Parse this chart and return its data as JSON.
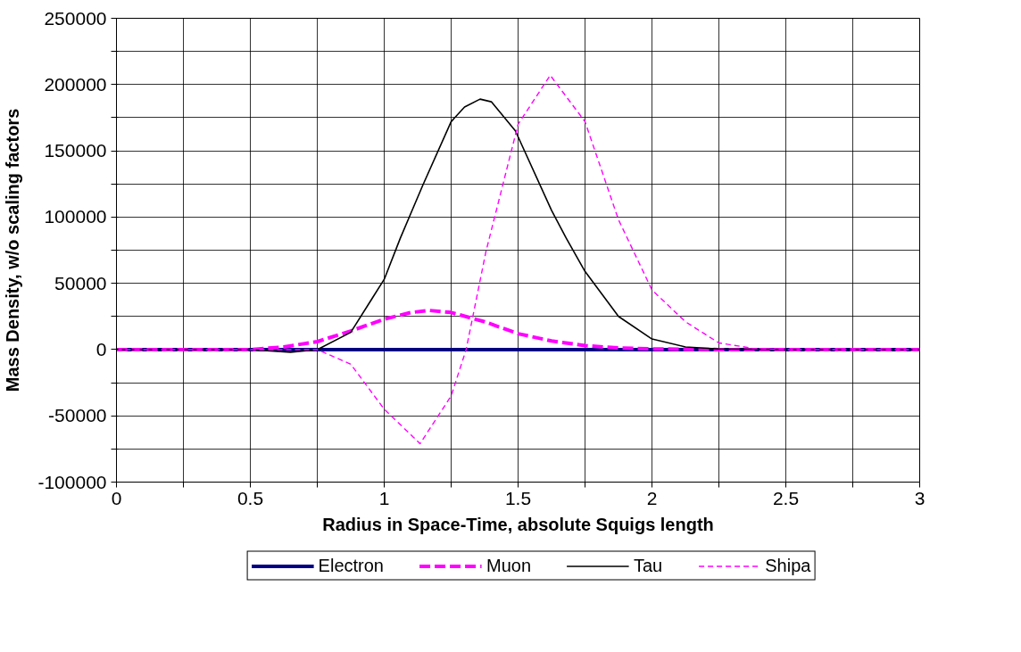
{
  "chart_data": {
    "type": "line",
    "xlabel": "Radius in Space-Time, absolute Squigs length",
    "ylabel": "Mass Density, w/o scaling factors",
    "xlim": [
      0,
      3
    ],
    "ylim": [
      -100000,
      250000
    ],
    "xticks": [
      0,
      {
        "value": 0.25,
        "label": null
      },
      0.5,
      {
        "value": 0.75,
        "label": null
      },
      1,
      {
        "value": 1.25,
        "label": null
      },
      1.5,
      {
        "value": 1.75,
        "label": null
      },
      2,
      {
        "value": 2.25,
        "label": null
      },
      2.5,
      {
        "value": 2.75,
        "label": null
      },
      3
    ],
    "yticks": [
      -100000,
      {
        "value": -75000,
        "label": null
      },
      -50000,
      {
        "value": -25000,
        "label": null
      },
      0,
      {
        "value": 25000,
        "label": null
      },
      50000,
      {
        "value": 75000,
        "label": null
      },
      100000,
      {
        "value": 125000,
        "label": null
      },
      150000,
      {
        "value": 175000,
        "label": null
      },
      200000,
      {
        "value": 225000,
        "label": null
      },
      250000
    ],
    "grid": true,
    "legend": "bottom",
    "marker": "none",
    "series": [
      {
        "name": "Electron",
        "color": "#000080",
        "line_style": "solid",
        "x": [
          0,
          0.5,
          1,
          1.5,
          2,
          2.5,
          3
        ],
        "values": [
          0,
          0,
          0,
          0,
          0,
          0,
          0
        ]
      },
      {
        "name": "Muon",
        "color": "#ff00ff",
        "line_style": "dashed",
        "x": [
          0,
          0.25,
          0.5,
          0.625,
          0.75,
          0.875,
          1,
          1.1,
          1.17,
          1.25,
          1.375,
          1.5,
          1.625,
          1.75,
          1.875,
          2,
          2.25,
          2.5,
          3
        ],
        "values": [
          0,
          0,
          0,
          2000,
          6000,
          14000,
          23000,
          28000,
          29500,
          28000,
          21000,
          12000,
          6500,
          3000,
          1200,
          500,
          0,
          0,
          0
        ]
      },
      {
        "name": "Tau",
        "color": "#000000",
        "line_style": "solid",
        "x": [
          0,
          0.25,
          0.5,
          0.65,
          0.75,
          0.875,
          0.953,
          1,
          1.06,
          1.144,
          1.25,
          1.3,
          1.358,
          1.4,
          1.49,
          1.625,
          1.68,
          1.75,
          1.875,
          2,
          2.125,
          2.25,
          2.5,
          3
        ],
        "values": [
          0,
          0,
          0,
          -2000,
          0,
          13000,
          38000,
          53000,
          84000,
          124000,
          172000,
          183000,
          189000,
          187000,
          165000,
          105000,
          84000,
          59000,
          25000,
          8000,
          2000,
          500,
          0,
          0
        ]
      },
      {
        "name": "Shipa",
        "color": "#ff00ff",
        "line_style": "dotted",
        "x": [
          0,
          0.25,
          0.5,
          0.75,
          0.875,
          1,
          1.134,
          1.25,
          1.306,
          1.38,
          1.5,
          1.62,
          1.75,
          1.875,
          2,
          2.125,
          2.25,
          2.375,
          2.5,
          3
        ],
        "values": [
          0,
          0,
          0,
          0,
          -11000,
          -45000,
          -71000,
          -35000,
          0,
          74000,
          170000,
          207000,
          172000,
          98000,
          45000,
          21000,
          5000,
          1000,
          0,
          0
        ]
      }
    ]
  }
}
